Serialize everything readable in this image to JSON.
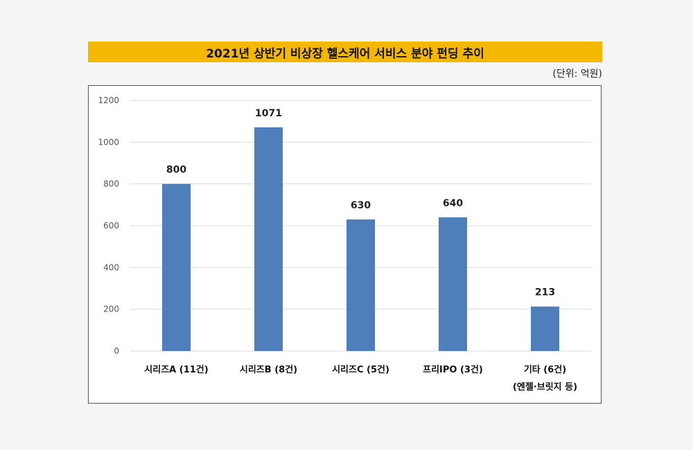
{
  "chart_data": {
    "type": "bar",
    "title": "2021년 상반기 비상장 헬스케어 서비스 분야 펀딩 추이",
    "unit_label": "(단위: 억원)",
    "categories": [
      [
        "시리즈A (11건)"
      ],
      [
        "시리즈B (8건)"
      ],
      [
        "시리즈C (5건)"
      ],
      [
        "프리IPO (3건)"
      ],
      [
        "기타 (6건)",
        "(엔젤·브릿지 등)"
      ]
    ],
    "values": [
      800,
      1071,
      630,
      640,
      213
    ],
    "ylim": [
      0,
      1200
    ],
    "yticks": [
      0,
      200,
      400,
      600,
      800,
      1000,
      1200
    ],
    "grid": true,
    "bar_color": "#4f7fbb",
    "title_bg": "#f5b800"
  }
}
